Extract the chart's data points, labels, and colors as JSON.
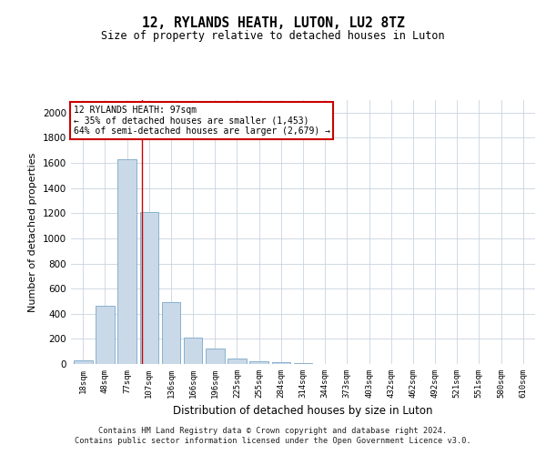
{
  "title": "12, RYLANDS HEATH, LUTON, LU2 8TZ",
  "subtitle": "Size of property relative to detached houses in Luton",
  "xlabel": "Distribution of detached houses by size in Luton",
  "ylabel": "Number of detached properties",
  "categories": [
    "18sqm",
    "48sqm",
    "77sqm",
    "107sqm",
    "136sqm",
    "166sqm",
    "196sqm",
    "225sqm",
    "255sqm",
    "284sqm",
    "314sqm",
    "344sqm",
    "373sqm",
    "403sqm",
    "432sqm",
    "462sqm",
    "492sqm",
    "521sqm",
    "551sqm",
    "580sqm",
    "610sqm"
  ],
  "values": [
    30,
    460,
    1630,
    1210,
    490,
    210,
    120,
    40,
    25,
    18,
    8,
    0,
    0,
    0,
    0,
    0,
    0,
    0,
    0,
    0,
    0
  ],
  "bar_color": "#c9d9e8",
  "bar_edge_color": "#7aa8c8",
  "property_line_x": 2.67,
  "annotation_title": "12 RYLANDS HEATH: 97sqm",
  "annotation_line1": "← 35% of detached houses are smaller (1,453)",
  "annotation_line2": "64% of semi-detached houses are larger (2,679) →",
  "annotation_box_color": "#ffffff",
  "annotation_box_edge": "#cc0000",
  "vline_color": "#cc0000",
  "grid_color": "#c8d4e0",
  "background_color": "#ffffff",
  "ylim": [
    0,
    2100
  ],
  "yticks": [
    0,
    200,
    400,
    600,
    800,
    1000,
    1200,
    1400,
    1600,
    1800,
    2000
  ],
  "footer1": "Contains HM Land Registry data © Crown copyright and database right 2024.",
  "footer2": "Contains public sector information licensed under the Open Government Licence v3.0."
}
